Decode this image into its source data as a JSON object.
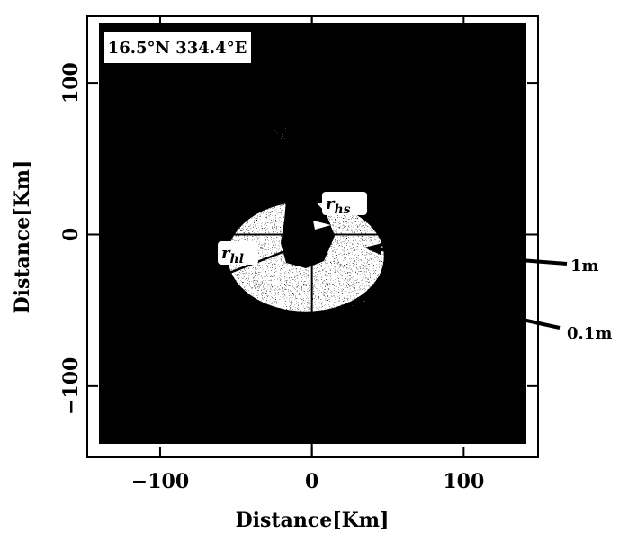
{
  "chart_data": {
    "type": "image",
    "xlabel": "Distance[Km]",
    "ylabel": "Distance[Km]",
    "xlim": [
      -148,
      149
    ],
    "ylim": [
      -147,
      144
    ],
    "xticks": [
      {
        "value": -100,
        "label": "−100"
      },
      0,
      100
    ],
    "yticks": [
      {
        "value": -100,
        "label": "−100"
      },
      0,
      100
    ],
    "annotations": [
      "16.5°N 334.4°E",
      "1m",
      "0.1m"
    ],
    "radii": [
      {
        "symbol": "r",
        "subscript": "hs"
      },
      {
        "symbol": "r",
        "subscript": "hl"
      }
    ]
  }
}
